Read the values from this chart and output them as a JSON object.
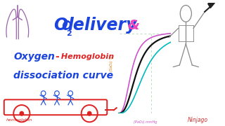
{
  "bg_color": "#ffffff",
  "text_blue": "#1a44dd",
  "text_red": "#dd2222",
  "text_pink": "#ee44bb",
  "text_orange": "#dd7700",
  "axis_green": "#00aa00",
  "curve_pink": "#cc55cc",
  "curve_black": "#111111",
  "curve_cyan": "#00bbbb",
  "grid_color": "#bbddbb",
  "car_color": "#dd2222",
  "person_color": "#888888",
  "watermark": "Ninjago",
  "watermark_color": "#cc3333",
  "xlabel": "(PaO₂) mmHg",
  "ylabel": "(SaO₂) %"
}
